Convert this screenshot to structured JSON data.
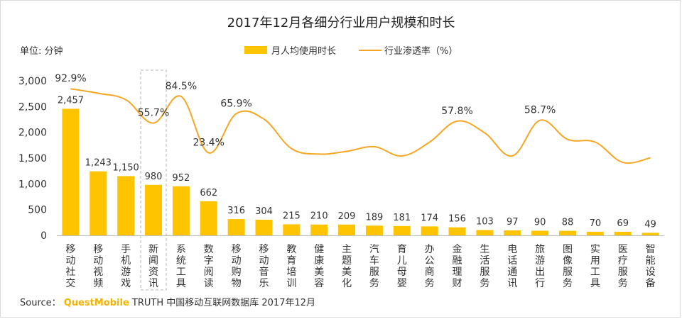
{
  "chart_data": {
    "type": "bar",
    "title": "2017年12月各细分行业用户规模和时长",
    "unit_label": "单位: 分钟",
    "categories": [
      "移动社交",
      "移动视频",
      "手机游戏",
      "新闻资讯",
      "系统工具",
      "数字阅读",
      "移动购物",
      "移动音乐",
      "教育培训",
      "健康美容",
      "主题美化",
      "汽车服务",
      "育儿母婴",
      "办公商务",
      "金融理财",
      "生活服务",
      "电话通讯",
      "旅游出行",
      "图像服务",
      "实用工具",
      "医疗服务",
      "智能设备"
    ],
    "series": [
      {
        "name": "月人均使用时长",
        "type": "bar",
        "color": "#ffc400",
        "values": [
          2457,
          1243,
          1150,
          980,
          952,
          662,
          316,
          304,
          215,
          210,
          209,
          189,
          181,
          174,
          156,
          103,
          97,
          90,
          88,
          70,
          69,
          49
        ],
        "labels": [
          "2,457",
          "1,243",
          "1,150",
          "980",
          "952",
          "662",
          "316",
          "304",
          "215",
          "210",
          "209",
          "189",
          "181",
          "174",
          "156",
          "103",
          "97",
          "90",
          "88",
          "70",
          "69",
          "49"
        ]
      },
      {
        "name": "行业渗透率（%）",
        "type": "line",
        "color": "#f5a623",
        "values": [
          92.9,
          88.0,
          81.0,
          55.7,
          84.5,
          23.4,
          65.9,
          60.0,
          28.0,
          22.0,
          25.0,
          30.0,
          20.0,
          35.0,
          57.8,
          45.0,
          20.0,
          58.7,
          38.0,
          35.0,
          13.0,
          18.0
        ],
        "labels": {
          "0": "92.9%",
          "3": "55.7%",
          "4": "84.5%",
          "5": "23.4%",
          "6": "65.9%",
          "14": "57.8%",
          "17": "58.7%"
        }
      }
    ],
    "y_ticks": [
      "0",
      "500",
      "1,000",
      "1,500",
      "2,000",
      "2,500",
      "3,000"
    ],
    "ylim": [
      0,
      3000
    ],
    "highlight_category": "新闻资讯",
    "legend_position": "top-center"
  },
  "source": {
    "prefix": "Source：",
    "brand": "QuestMobile",
    "text": "TRUTH 中国移动互联网数据库 2017年12月"
  }
}
